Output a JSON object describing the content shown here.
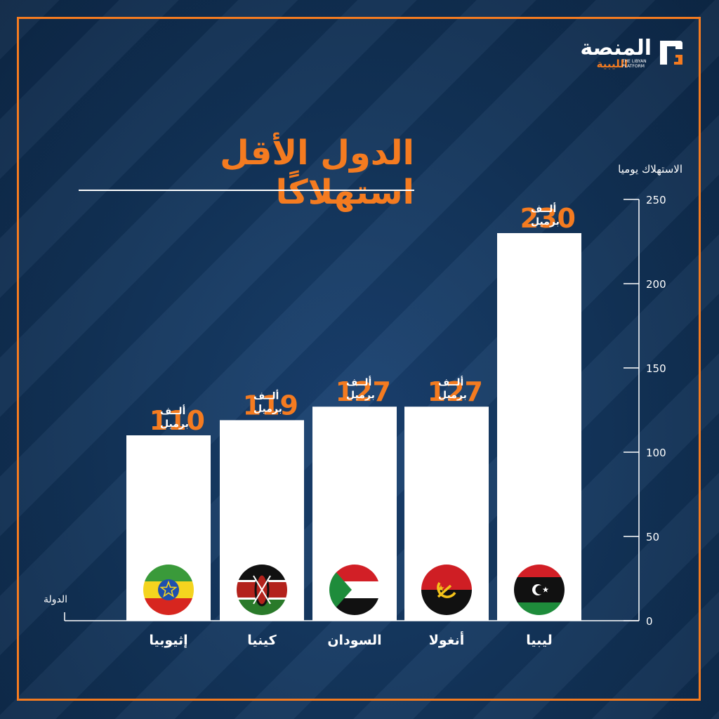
{
  "logo": {
    "arabic_main": "المنصة",
    "arabic_sub": "الليبية",
    "english_line1": "THE LIBYAN",
    "english_line2": "PLATFORM",
    "accent_color": "#f47b20"
  },
  "colors": {
    "background": "#123358",
    "accent": "#f47b20",
    "bar": "#ffffff",
    "text": "#ffffff"
  },
  "chart_data": {
    "type": "bar",
    "title": "الدول الأقل استهلاكًا",
    "ylabel": "الاستهلاك يوميا",
    "xlabel": "الدولة",
    "ylim": [
      0,
      250
    ],
    "yticks": [
      0,
      50,
      100,
      150,
      200,
      250
    ],
    "categories": [
      "إثيوبيا",
      "كينيا",
      "السودان",
      "أنغولا",
      "ليبيا"
    ],
    "values": [
      110,
      119,
      127,
      127,
      230
    ],
    "value_unit_line1": "ألــف",
    "value_unit_line2": "برميل",
    "flag_icons": [
      "ethiopia-flag-icon",
      "kenya-flag-icon",
      "sudan-flag-icon",
      "angola-flag-icon",
      "libya-flag-icon"
    ],
    "grid": false,
    "axis_side": "right"
  }
}
